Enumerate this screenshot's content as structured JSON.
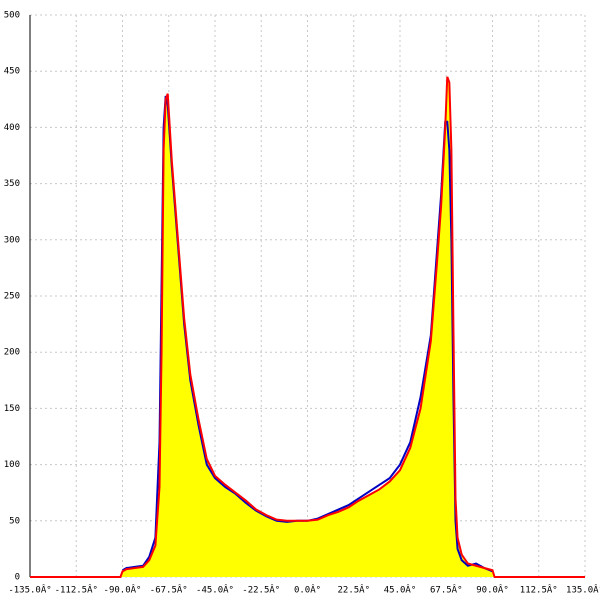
{
  "chart_data": {
    "type": "area",
    "x": [
      -135,
      -91,
      -90,
      -88,
      -84,
      -80,
      -77,
      -74,
      -72,
      -71,
      -70,
      -69,
      -68,
      -66,
      -63,
      -60,
      -57,
      -53,
      -49,
      -45,
      -40,
      -35,
      -30,
      -25,
      -20,
      -15,
      -10,
      -5,
      0,
      5,
      10,
      15,
      20,
      25,
      30,
      35,
      40,
      45,
      50,
      55,
      60,
      63,
      65,
      67,
      68,
      69,
      70,
      71,
      72,
      73,
      75,
      78,
      82,
      86,
      90,
      91,
      135
    ],
    "series": [
      {
        "color": "#0000c0",
        "values": [
          null,
          null,
          6,
          8,
          9,
          10,
          18,
          35,
          120,
          260,
          400,
          428,
          420,
          365,
          295,
          225,
          175,
          135,
          100,
          88,
          80,
          74,
          66,
          59,
          54,
          50,
          49,
          50,
          50,
          52,
          56,
          60,
          64,
          70,
          76,
          82,
          88,
          100,
          120,
          160,
          215,
          290,
          340,
          405,
          405,
          380,
          300,
          160,
          50,
          25,
          15,
          10,
          12,
          8,
          5,
          null,
          null
        ]
      },
      {
        "color": "#ff0000",
        "fill": "#ffff00",
        "values": [
          0,
          0,
          5,
          7,
          8,
          9,
          15,
          28,
          80,
          200,
          380,
          425,
          430,
          370,
          300,
          230,
          180,
          140,
          105,
          90,
          82,
          75,
          68,
          60,
          55,
          51,
          50,
          50,
          50,
          51,
          55,
          58,
          62,
          68,
          73,
          78,
          85,
          95,
          115,
          150,
          210,
          280,
          330,
          400,
          445,
          440,
          380,
          220,
          70,
          35,
          20,
          12,
          10,
          8,
          6,
          0,
          0
        ]
      }
    ],
    "xlim": [
      -135,
      135
    ],
    "xticks": [
      {
        "value": -135,
        "label": "-135.0Â°"
      },
      {
        "value": -112.5,
        "label": "-112.5Â°"
      },
      {
        "value": -90,
        "label": "-90.0Â°"
      },
      {
        "value": -67.5,
        "label": "-67.5Â°"
      },
      {
        "value": -45,
        "label": "-45.0Â°"
      },
      {
        "value": -22.5,
        "label": "-22.5Â°"
      },
      {
        "value": 0,
        "label": "0.0Â°"
      },
      {
        "value": 22.5,
        "label": "22.5Â°"
      },
      {
        "value": 45,
        "label": "45.0Â°"
      },
      {
        "value": 67.5,
        "label": "67.5Â°"
      },
      {
        "value": 90,
        "label": "90.0Â°"
      },
      {
        "value": 112.5,
        "label": "112.5Â°"
      },
      {
        "value": 135,
        "label": "135.0Â°"
      }
    ],
    "ylim": [
      0,
      500
    ],
    "yticks": [
      0,
      50,
      100,
      150,
      200,
      250,
      300,
      350,
      400,
      450,
      500
    ],
    "grid": true
  }
}
